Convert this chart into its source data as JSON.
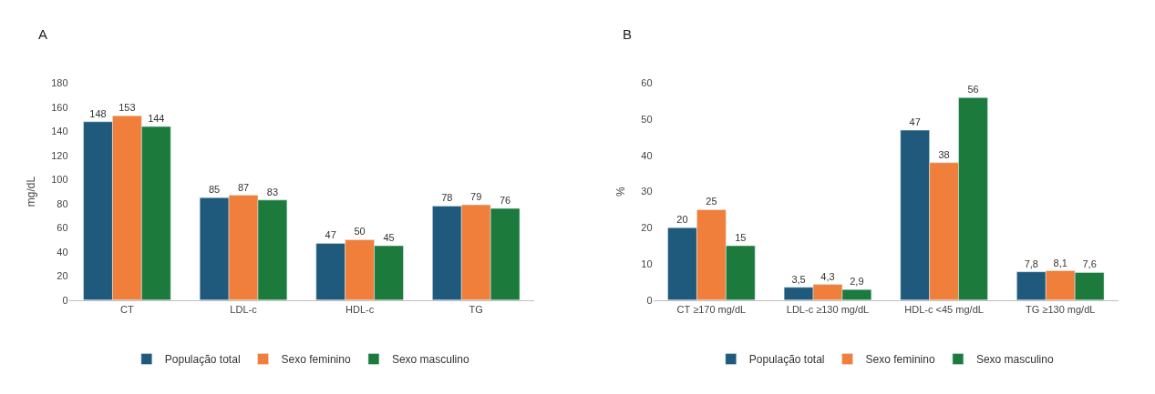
{
  "chart_data": [
    {
      "type": "bar",
      "title": "A",
      "ylabel": "mg/dL",
      "categories": [
        "CT",
        "LDL-c",
        "HDL-c",
        "TG"
      ],
      "series": [
        {
          "name": "População total",
          "color": "#1f5a7c",
          "values": [
            148,
            85,
            47,
            78
          ]
        },
        {
          "name": "Sexo feminino",
          "color": "#ef7f3a",
          "values": [
            153,
            87,
            50,
            79
          ]
        },
        {
          "name": "Sexo masculino",
          "color": "#1b7a3c",
          "values": [
            144,
            83,
            45,
            76
          ]
        }
      ],
      "ylim": [
        0,
        180
      ],
      "yticks": [
        0,
        20,
        40,
        60,
        80,
        100,
        120,
        140,
        160,
        180
      ],
      "grid": false,
      "legend": "bottom",
      "data_labels": true
    },
    {
      "type": "bar",
      "title": "B",
      "ylabel": "%",
      "categories": [
        "CT ≥170 mg/dL",
        "LDL-c ≥130 mg/dL",
        "HDL-c <45 mg/dL",
        "TG ≥130 mg/dL"
      ],
      "series": [
        {
          "name": "População total",
          "color": "#1f5a7c",
          "values": [
            20,
            3.5,
            47,
            7.8
          ],
          "value_labels": [
            "20",
            "3,5",
            "47",
            "7,8"
          ]
        },
        {
          "name": "Sexo feminino",
          "color": "#ef7f3a",
          "values": [
            25,
            4.3,
            38,
            8.1
          ],
          "value_labels": [
            "25",
            "4,3",
            "38",
            "8,1"
          ]
        },
        {
          "name": "Sexo masculino",
          "color": "#1b7a3c",
          "values": [
            15,
            2.9,
            56,
            7.6
          ],
          "value_labels": [
            "15",
            "2,9",
            "56",
            "7,6"
          ]
        }
      ],
      "ylim": [
        0,
        60
      ],
      "yticks": [
        0,
        10,
        20,
        30,
        40,
        50,
        60
      ],
      "grid": false,
      "legend": "bottom"
    }
  ]
}
